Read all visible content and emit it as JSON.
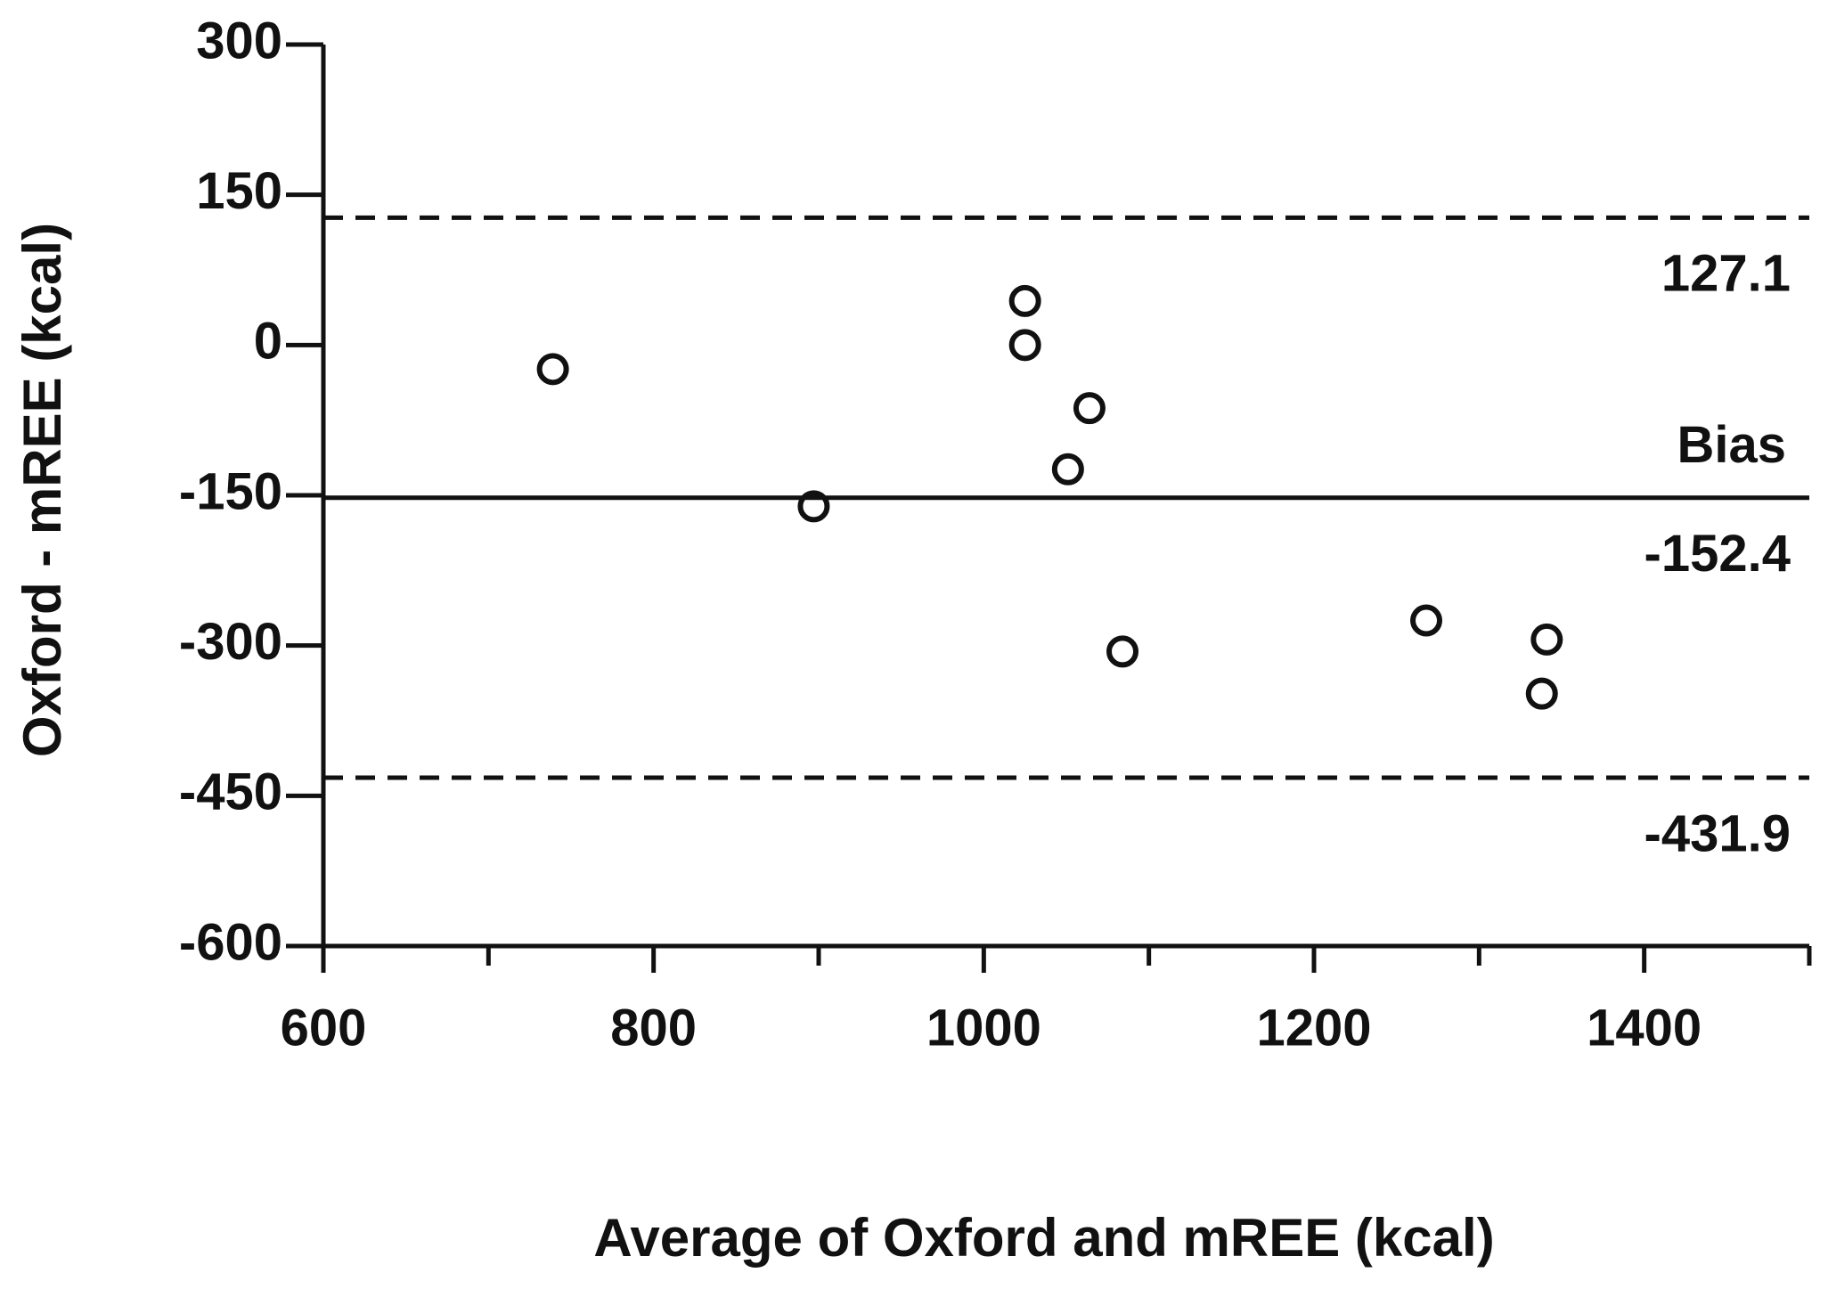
{
  "chart_data": {
    "type": "scatter",
    "xlabel": "Average of Oxford and mREE (kcal)",
    "ylabel": "Oxford - mREE (kcal)",
    "x": [
      739,
      897,
      1025,
      1025,
      1064,
      1051,
      1084,
      1268,
      1341,
      1338
    ],
    "series": [
      {
        "color": "#111111",
        "values": [
          -24,
          -161,
          44,
          0,
          -63,
          -124,
          -306,
          -275,
          -294,
          -348
        ]
      }
    ],
    "xlim": [
      600,
      1500
    ],
    "xticks": [
      600,
      800,
      1000,
      1200,
      1400
    ],
    "xminorticks": [
      700,
      900,
      1100,
      1300,
      1500
    ],
    "ylim": [
      -600,
      300
    ],
    "yticks": [
      300,
      150,
      0,
      -150,
      -300,
      -450,
      -600
    ],
    "reference_lines": [
      {
        "value": 127.1,
        "style": "dashed"
      },
      {
        "name": "Bias",
        "value": -152.4,
        "style": "solid"
      },
      {
        "value": -431.9,
        "style": "dashed"
      }
    ]
  }
}
